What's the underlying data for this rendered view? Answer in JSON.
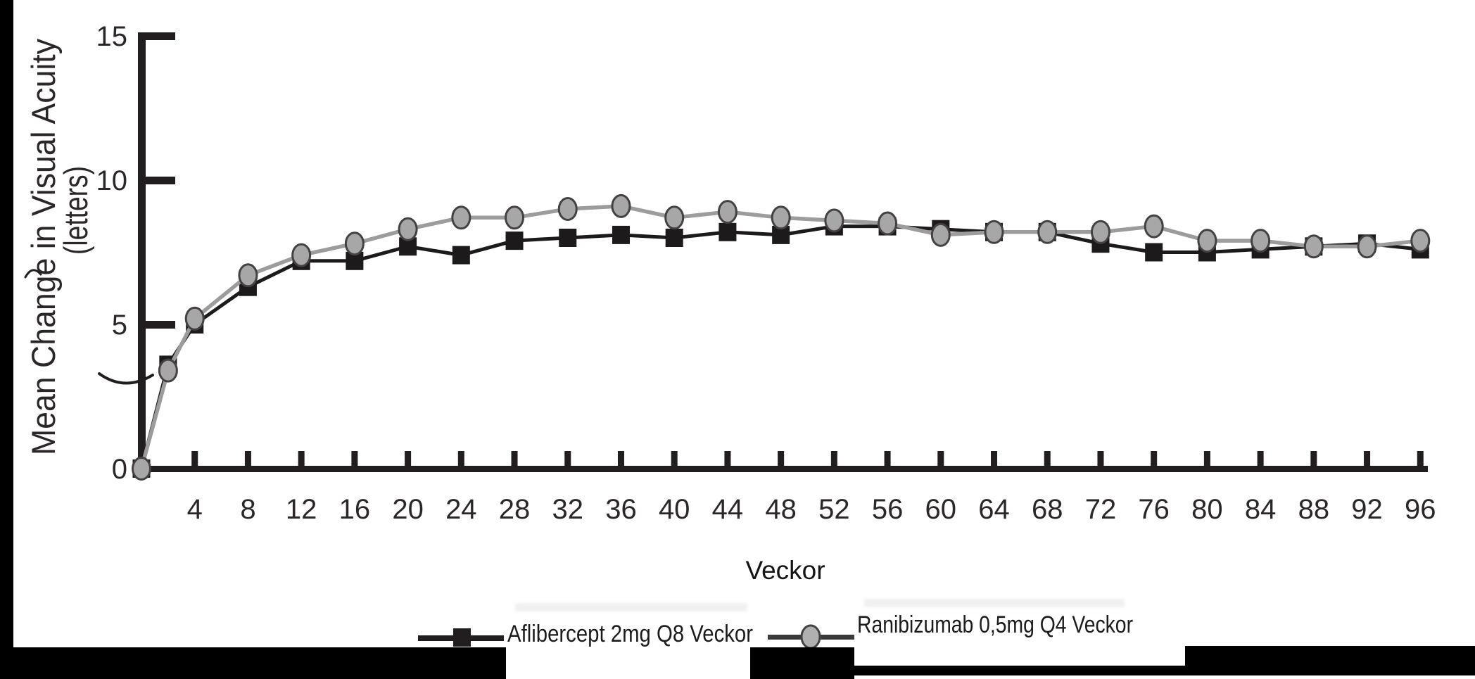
{
  "figure": {
    "y_axis": {
      "title_line1": "Mean Change in Visual Acuity",
      "title_line2": "(letters)",
      "tick_values": [
        0,
        5,
        10,
        15
      ],
      "tick_labels": [
        "0",
        "5",
        "10",
        "15"
      ],
      "range": [
        0,
        15
      ]
    },
    "x_axis": {
      "title": "Veckor",
      "tick_values": [
        4,
        8,
        12,
        16,
        20,
        24,
        28,
        32,
        36,
        40,
        44,
        48,
        52,
        56,
        60,
        64,
        68,
        72,
        76,
        80,
        84,
        88,
        92,
        96
      ],
      "tick_labels": [
        "4",
        "8",
        "12",
        "16",
        "20",
        "24",
        "28",
        "32",
        "36",
        "40",
        "44",
        "48",
        "52",
        "56",
        "60",
        "64",
        "68",
        "72",
        "76",
        "80",
        "84",
        "88",
        "92",
        "96"
      ],
      "range": [
        0,
        96
      ]
    },
    "legend": {
      "items": [
        {
          "label": "Aflibercept 2mg Q8 Veckor",
          "marker": "square",
          "marker_color": "#221e1f",
          "line_color": "#221e1f"
        },
        {
          "label": "Ranibizumab 0,5mg Q4 Veckor",
          "marker": "circle",
          "marker_fill": "#b0b0b0",
          "marker_stroke": "#454142",
          "line_color": "#3a3a3a"
        }
      ]
    },
    "colors": {
      "axis": "#221e1f",
      "series1_line": "#1d1a1b",
      "series2_line": "#9c9c9c",
      "circle_fill": "#a7a7a7",
      "circle_stroke": "#454142",
      "tick_text": "#2b2728",
      "redaction": "#000000"
    }
  },
  "chart_data": {
    "type": "line",
    "x": [
      0,
      2,
      4,
      8,
      12,
      16,
      20,
      24,
      28,
      32,
      36,
      40,
      44,
      48,
      52,
      56,
      60,
      64,
      68,
      72,
      76,
      80,
      84,
      88,
      92,
      96
    ],
    "series": [
      {
        "name": "Aflibercept 2mg Q8 Veckor",
        "marker": "square",
        "values": [
          0,
          3.6,
          5.0,
          6.3,
          7.2,
          7.2,
          7.7,
          7.4,
          7.9,
          8.0,
          8.1,
          8.0,
          8.2,
          8.1,
          8.4,
          8.4,
          8.3,
          8.2,
          8.2,
          7.8,
          7.5,
          7.5,
          7.6,
          7.7,
          7.8,
          7.6
        ]
      },
      {
        "name": "Ranibizumab 0,5mg Q4 Veckor",
        "marker": "circle",
        "values": [
          0,
          3.4,
          5.2,
          6.7,
          7.4,
          7.8,
          8.3,
          8.7,
          8.7,
          9.0,
          9.1,
          8.7,
          8.9,
          8.7,
          8.6,
          8.5,
          8.1,
          8.2,
          8.2,
          8.2,
          8.4,
          7.9,
          7.9,
          7.7,
          7.7,
          7.9
        ]
      }
    ],
    "title": "",
    "xlabel": "Veckor",
    "ylabel": "Mean Change in Visual Acuity (letters)",
    "xlim": [
      0,
      96
    ],
    "ylim": [
      0,
      15
    ],
    "grid": false,
    "legend_position": "bottom"
  }
}
